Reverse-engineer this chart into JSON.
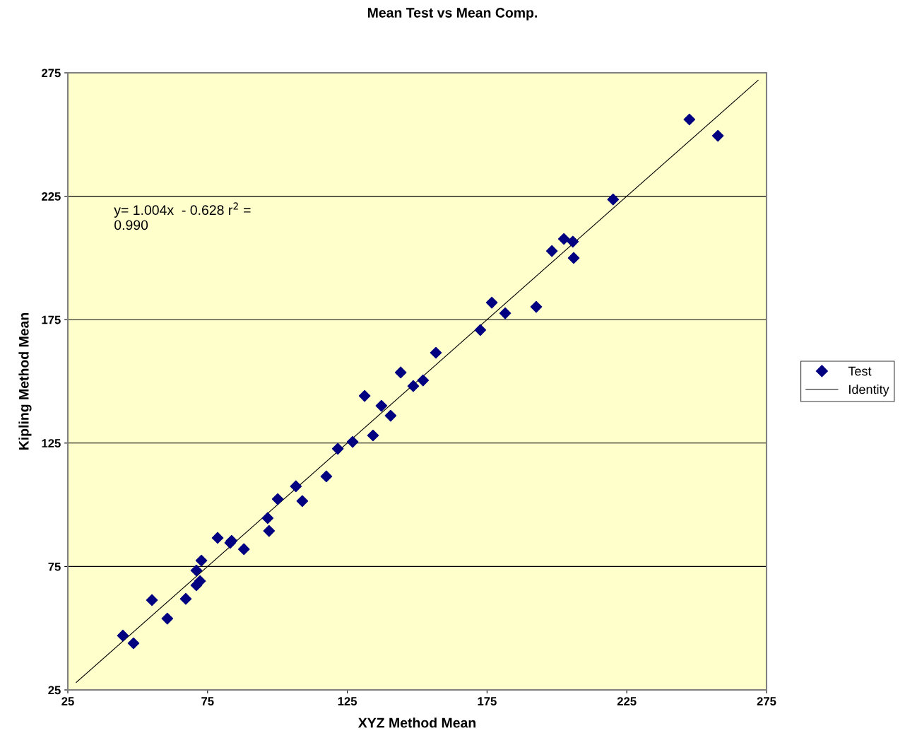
{
  "chart_data": {
    "type": "scatter",
    "title": "Mean Test vs Mean Comp.",
    "xlabel": "XYZ Method Mean",
    "ylabel": "Kipling Method Mean",
    "xlim": [
      25,
      275
    ],
    "xticks": [
      25,
      75,
      125,
      175,
      225,
      275
    ],
    "ylim": [
      25,
      275
    ],
    "yticks": [
      25,
      75,
      125,
      175,
      225,
      275
    ],
    "grid": "y",
    "legend": "right",
    "annotations": [
      "y= 1.004x  - 0.628 r$^{2}$ =\n0.990"
    ],
    "series": [
      {
        "name": "Test",
        "marker": "diamond",
        "color": "#000080",
        "x": [
          44.7,
          48.5,
          55.1,
          60.6,
          67.2,
          71.0,
          71.0,
          72.3,
          72.8,
          78.6,
          83.1,
          83.6,
          88.0,
          96.5,
          97.0,
          100.1,
          106.6,
          108.9,
          117.5,
          121.6,
          126.9,
          131.2,
          134.2,
          137.2,
          140.5,
          144.1,
          148.6,
          152.1,
          156.7,
          172.6,
          176.7,
          181.5,
          192.6,
          198.2,
          202.5,
          205.7,
          206.0,
          220.1,
          247.4,
          257.6
        ],
        "values": [
          47.0,
          43.9,
          61.4,
          53.9,
          61.9,
          73.4,
          67.4,
          69.1,
          77.4,
          86.6,
          84.6,
          85.4,
          82.0,
          94.6,
          89.4,
          102.3,
          107.5,
          101.5,
          111.5,
          122.7,
          125.5,
          144.1,
          128.1,
          140.1,
          136.1,
          153.6,
          148.1,
          150.4,
          161.6,
          170.8,
          181.9,
          177.6,
          180.2,
          202.8,
          207.7,
          206.6,
          200.0,
          223.7,
          256.1,
          249.5
        ]
      },
      {
        "name": "Identity",
        "type": "line",
        "marker": "none",
        "line_style": "solid",
        "color": "#000000",
        "x": [
          28,
          272
        ],
        "values": [
          28,
          272
        ]
      }
    ]
  }
}
